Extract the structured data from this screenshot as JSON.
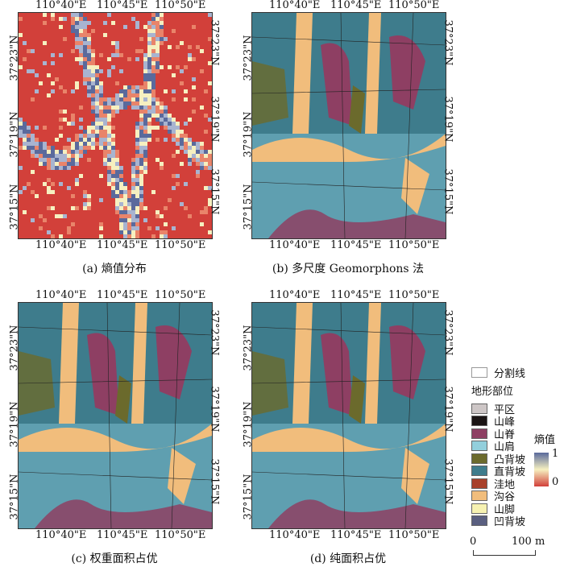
{
  "lon_ticks": [
    "110°40\"E",
    "110°45\"E",
    "110°50\"E"
  ],
  "lat_ticks": [
    "37°23\"N",
    "37°19\"N",
    "37°15\"N"
  ],
  "panels": [
    {
      "caption": "(a) 熵值分布"
    },
    {
      "caption": "(b) 多尺度 Geomorphons 法"
    },
    {
      "caption": "(c) 权重面积占优"
    },
    {
      "caption": "(d) 纯面积占优"
    }
  ],
  "legend": {
    "boundary_label": "分割线",
    "landform_title": "地形部位",
    "classes": [
      {
        "label": "平区",
        "color": "#cdc6c6"
      },
      {
        "label": "山峰",
        "color": "#1a1414"
      },
      {
        "label": "山脊",
        "color": "#8e3f63"
      },
      {
        "label": "山肩",
        "color": "#93cfdc"
      },
      {
        "label": "凸背坡",
        "color": "#6b6a2c"
      },
      {
        "label": "直背坡",
        "color": "#3e7c8c"
      },
      {
        "label": "洼地",
        "color": "#a8402a"
      },
      {
        "label": "沟谷",
        "color": "#f1bd7c"
      },
      {
        "label": "山脚",
        "color": "#f7f2b2"
      },
      {
        "label": "凹背坡",
        "color": "#5a5f80"
      }
    ],
    "entropy_title": "熵值",
    "entropy_max": "1",
    "entropy_min": "0",
    "entropy_colors": [
      "#5a6a9c",
      "#f6f0c0",
      "#d2403a"
    ],
    "scale_zero": "0",
    "scale_end": "100 m"
  }
}
